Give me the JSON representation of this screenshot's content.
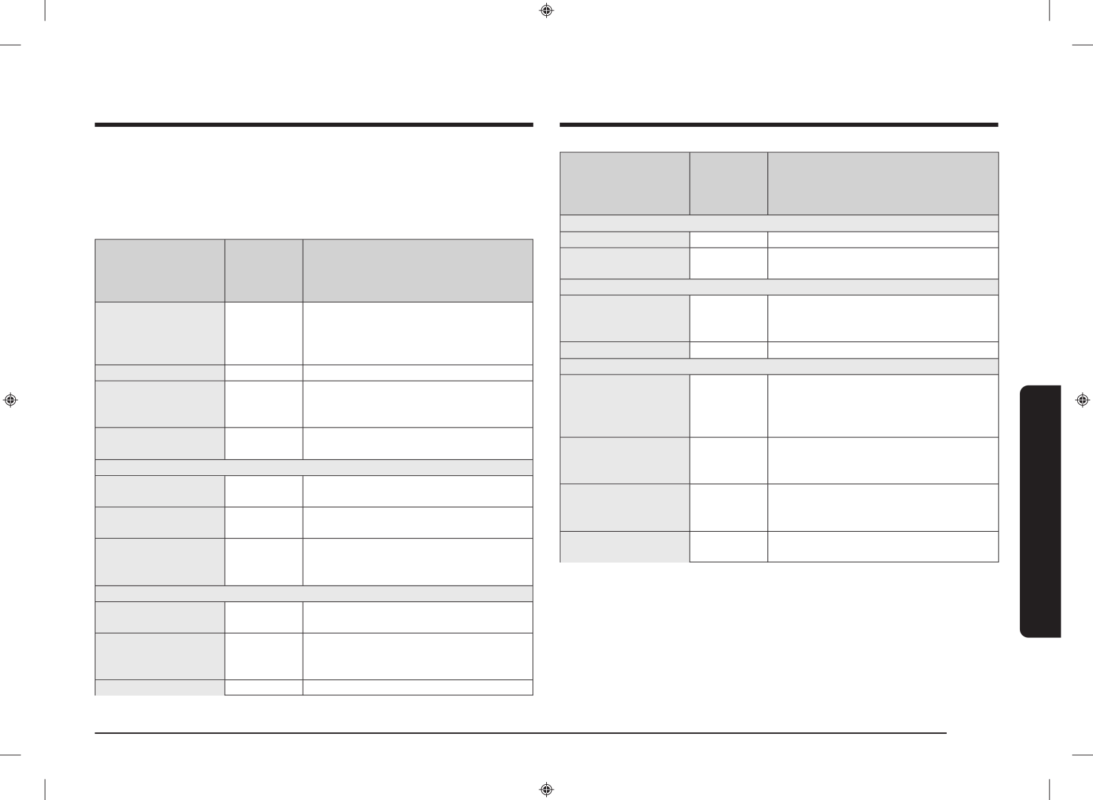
{
  "colors": {
    "rule": "#231f20",
    "header_fill": "#d2d2d2",
    "label_fill": "#e8e8e8",
    "tab_fill": "#231f20"
  },
  "left_table": {
    "header": [
      "",
      "",
      ""
    ]
  },
  "right_table": {
    "header": [
      "",
      "",
      ""
    ]
  }
}
